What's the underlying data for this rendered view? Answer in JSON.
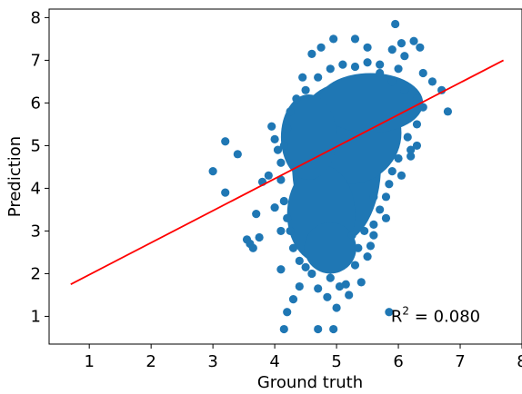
{
  "chart_data": {
    "type": "scatter",
    "xlabel": "Ground truth",
    "ylabel": "Prediction",
    "xlim": [
      0.35,
      8.0
    ],
    "ylim": [
      0.35,
      8.2
    ],
    "xticks": [
      "1",
      "2",
      "3",
      "4",
      "5",
      "6",
      "7",
      "8"
    ],
    "yticks": [
      "1",
      "2",
      "3",
      "4",
      "5",
      "6",
      "7",
      "8"
    ],
    "grid": false,
    "annotation": {
      "prefix": "R",
      "superscript": "2",
      "suffix": " = 0.080"
    },
    "fit_line": {
      "color": "#ff0000",
      "x": [
        0.7,
        7.7
      ],
      "y": [
        1.75,
        7.0
      ]
    },
    "series": [
      {
        "color": "#1f77b4",
        "points": [
          [
            3.0,
            4.4
          ],
          [
            3.2,
            3.9
          ],
          [
            3.2,
            5.1
          ],
          [
            3.4,
            4.8
          ],
          [
            3.55,
            2.8
          ],
          [
            3.6,
            2.7
          ],
          [
            3.65,
            2.6
          ],
          [
            3.7,
            3.4
          ],
          [
            3.75,
            2.85
          ],
          [
            3.8,
            4.15
          ],
          [
            3.9,
            4.3
          ],
          [
            3.95,
            5.45
          ],
          [
            4.0,
            5.15
          ],
          [
            4.0,
            3.55
          ],
          [
            4.05,
            4.9
          ],
          [
            4.1,
            3.0
          ],
          [
            4.1,
            2.1
          ],
          [
            4.15,
            0.7
          ],
          [
            4.2,
            1.1
          ],
          [
            4.3,
            1.4
          ],
          [
            4.4,
            1.7
          ],
          [
            4.45,
            6.6
          ],
          [
            4.6,
            7.15
          ],
          [
            4.7,
            0.7
          ],
          [
            4.75,
            7.3
          ],
          [
            4.85,
            1.45
          ],
          [
            4.95,
            7.5
          ],
          [
            4.95,
            0.7
          ],
          [
            5.0,
            1.2
          ],
          [
            5.2,
            1.5
          ],
          [
            5.3,
            7.5
          ],
          [
            5.4,
            1.8
          ],
          [
            5.5,
            7.3
          ],
          [
            5.55,
            2.65
          ],
          [
            5.6,
            3.15
          ],
          [
            5.7,
            6.9
          ],
          [
            5.8,
            3.8
          ],
          [
            5.85,
            1.1
          ],
          [
            5.9,
            7.25
          ],
          [
            5.95,
            7.85
          ],
          [
            6.0,
            6.8
          ],
          [
            6.05,
            7.4
          ],
          [
            6.05,
            4.3
          ],
          [
            6.1,
            7.1
          ],
          [
            6.2,
            4.75
          ],
          [
            6.25,
            7.45
          ],
          [
            6.35,
            7.3
          ],
          [
            6.4,
            6.7
          ],
          [
            6.55,
            6.5
          ],
          [
            6.7,
            6.3
          ],
          [
            6.8,
            5.8
          ],
          [
            6.3,
            5.5
          ],
          [
            6.15,
            5.2
          ],
          [
            5.9,
            4.4
          ],
          [
            5.7,
            3.5
          ],
          [
            5.6,
            2.9
          ],
          [
            5.5,
            2.4
          ],
          [
            5.3,
            2.2
          ],
          [
            5.15,
            1.75
          ],
          [
            5.05,
            1.7
          ],
          [
            4.9,
            1.9
          ],
          [
            4.7,
            1.65
          ],
          [
            4.6,
            2.0
          ],
          [
            4.5,
            2.15
          ],
          [
            4.4,
            2.3
          ],
          [
            4.3,
            2.6
          ],
          [
            4.25,
            3.0
          ],
          [
            4.2,
            3.3
          ],
          [
            4.15,
            3.7
          ],
          [
            4.1,
            4.2
          ],
          [
            4.1,
            4.6
          ],
          [
            4.15,
            5.0
          ],
          [
            4.2,
            5.4
          ],
          [
            4.25,
            5.8
          ],
          [
            4.35,
            6.1
          ],
          [
            4.5,
            6.3
          ],
          [
            4.7,
            6.6
          ],
          [
            4.9,
            6.8
          ],
          [
            5.1,
            6.9
          ],
          [
            5.3,
            6.85
          ],
          [
            5.5,
            6.95
          ],
          [
            5.7,
            6.7
          ],
          [
            5.9,
            6.5
          ],
          [
            6.1,
            6.3
          ],
          [
            6.3,
            6.1
          ],
          [
            6.4,
            5.9
          ],
          [
            6.3,
            5.0
          ],
          [
            6.2,
            4.9
          ],
          [
            6.0,
            4.7
          ],
          [
            5.85,
            4.1
          ],
          [
            5.8,
            3.3
          ],
          [
            5.6,
            3.8
          ],
          [
            5.45,
            3.0
          ],
          [
            5.35,
            2.6
          ],
          [
            5.25,
            2.9
          ]
        ]
      }
    ]
  }
}
